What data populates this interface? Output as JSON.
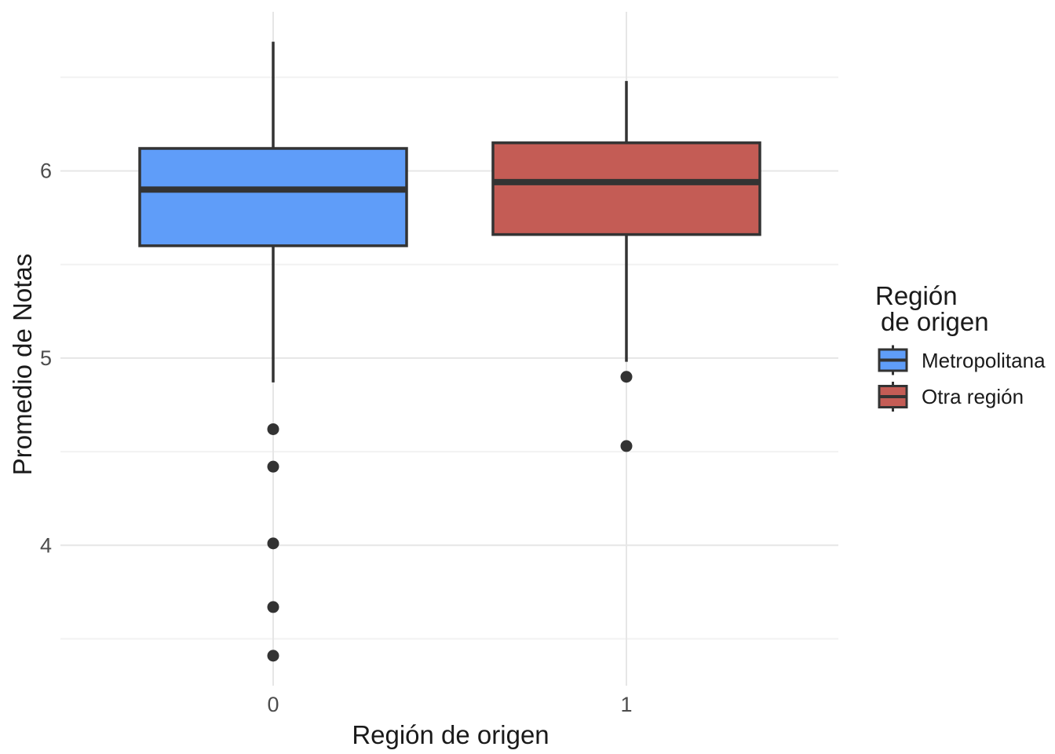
{
  "figure": {
    "background": "#FFFFFF"
  },
  "chart_data": {
    "type": "boxplot",
    "title": "",
    "xlabel": "Región de origen",
    "ylabel": "Promedio de Notas",
    "x_categories": [
      "0",
      "1"
    ],
    "y_major_ticks": [
      4,
      5,
      6
    ],
    "y_minor_gridlines": [
      3.5,
      4.5,
      5.5,
      6.5
    ],
    "ylim": [
      3.25,
      6.85
    ],
    "grid": true,
    "legend_position": "right",
    "legend_title_lines": [
      "Región",
      " de origen"
    ],
    "series": [
      {
        "name": "Metropolitana",
        "x": "0",
        "fill": "#5F9DF9",
        "whisker_low": 4.87,
        "q1": 5.6,
        "median": 5.9,
        "q3": 6.12,
        "whisker_high": 6.69,
        "outliers": [
          4.62,
          4.42,
          4.01,
          3.67,
          3.41
        ]
      },
      {
        "name": "Otra región",
        "x": "1",
        "fill": "#C45C55",
        "whisker_low": 4.98,
        "q1": 5.66,
        "median": 5.94,
        "q3": 6.15,
        "whisker_high": 6.48,
        "outliers": [
          4.9,
          4.53
        ]
      }
    ],
    "colors": {
      "box_line": "#333333",
      "outlier": "#333333",
      "grid_major": "#E6E6E6",
      "grid_minor": "#F2F2F2",
      "tick_label": "#4D4D4D",
      "title_text": "#1A1A1A"
    }
  }
}
